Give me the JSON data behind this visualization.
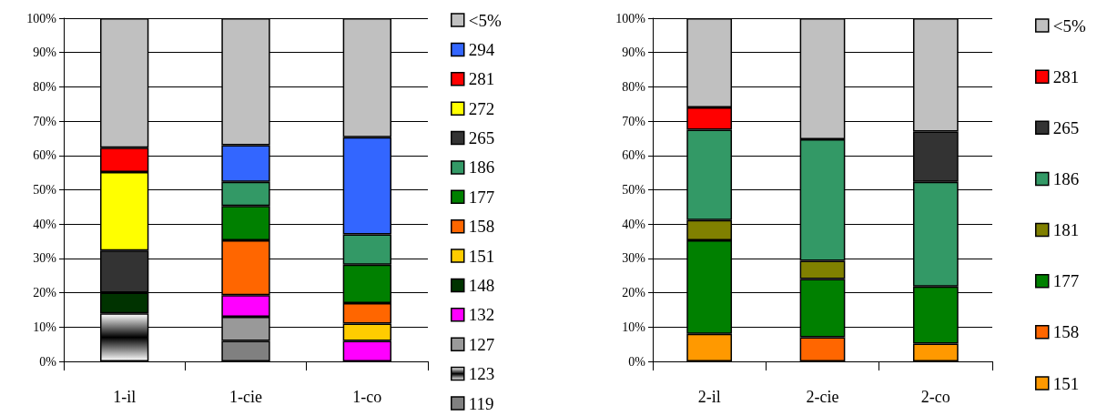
{
  "chart_data": [
    {
      "type": "bar",
      "stacked": true,
      "categories": [
        "1-il",
        "1-cie",
        "1-co"
      ],
      "ylim": [
        0,
        100
      ],
      "yticks": [
        {
          "value": 0,
          "label": "0%"
        },
        {
          "value": 10,
          "label": "10%"
        },
        {
          "value": 20,
          "label": "20%"
        },
        {
          "value": 30,
          "label": "30%"
        },
        {
          "value": 40,
          "label": "40%"
        },
        {
          "value": 50,
          "label": "50%"
        },
        {
          "value": 60,
          "label": "60%"
        },
        {
          "value": 70,
          "label": "70%"
        },
        {
          "value": 80,
          "label": "80%"
        },
        {
          "value": 90,
          "label": "90%"
        },
        {
          "value": 100,
          "label": "100%"
        }
      ],
      "grid": "y",
      "legend": "right",
      "series": [
        {
          "name": "119",
          "color": "#808080",
          "values": [
            null,
            6,
            null
          ]
        },
        {
          "name": "123",
          "color": "#000000",
          "values": [
            14,
            null,
            null
          ]
        },
        {
          "name": "127",
          "color": "#999999",
          "values": [
            null,
            7,
            null
          ]
        },
        {
          "name": "132",
          "color": "#ff00ff",
          "values": [
            null,
            6.3,
            6
          ]
        },
        {
          "name": "148",
          "color": "#003300",
          "values": [
            6,
            null,
            null
          ]
        },
        {
          "name": "151",
          "color": "#ffcc00",
          "values": [
            null,
            null,
            5
          ]
        },
        {
          "name": "158",
          "color": "#ff6600",
          "values": [
            null,
            16,
            6
          ]
        },
        {
          "name": "177",
          "color": "#008000",
          "values": [
            null,
            10,
            11.2
          ]
        },
        {
          "name": "186",
          "color": "#339966",
          "values": [
            null,
            7,
            8.8
          ]
        },
        {
          "name": "265",
          "color": "#333333",
          "values": [
            12.3,
            null,
            null
          ]
        },
        {
          "name": "272",
          "color": "#ffff00",
          "values": [
            22.9,
            null,
            null
          ]
        },
        {
          "name": "281",
          "color": "#ff0000",
          "values": [
            7.1,
            null,
            null
          ]
        },
        {
          "name": "294",
          "color": "#3366ff",
          "values": [
            null,
            10.7,
            28.3
          ]
        },
        {
          "name": "<5%",
          "color": "#c0c0c0",
          "values": [
            37.7,
            37,
            34.7
          ]
        }
      ]
    },
    {
      "type": "bar",
      "stacked": true,
      "categories": [
        "2-il",
        "2-cie",
        "2-co"
      ],
      "ylim": [
        0,
        100
      ],
      "yticks": [
        {
          "value": 0,
          "label": "0%"
        },
        {
          "value": 10,
          "label": "10%"
        },
        {
          "value": 20,
          "label": "20%"
        },
        {
          "value": 30,
          "label": "30%"
        },
        {
          "value": 40,
          "label": "40%"
        },
        {
          "value": 50,
          "label": "50%"
        },
        {
          "value": 60,
          "label": "60%"
        },
        {
          "value": 70,
          "label": "70%"
        },
        {
          "value": 80,
          "label": "80%"
        },
        {
          "value": 90,
          "label": "90%"
        },
        {
          "value": 100,
          "label": "100%"
        }
      ],
      "grid": "y",
      "legend": "right",
      "series": [
        {
          "name": "151",
          "color": "#ff9900",
          "values": [
            8,
            null,
            5.2
          ]
        },
        {
          "name": "158",
          "color": "#ff6600",
          "values": [
            null,
            7,
            null
          ]
        },
        {
          "name": "177",
          "color": "#008000",
          "values": [
            27.3,
            17,
            16.6
          ]
        },
        {
          "name": "181",
          "color": "#808000",
          "values": [
            5.9,
            5.3,
            null
          ]
        },
        {
          "name": "186",
          "color": "#339966",
          "values": [
            26.3,
            35.4,
            30.5
          ]
        },
        {
          "name": "265",
          "color": "#333333",
          "values": [
            null,
            null,
            14.7
          ]
        },
        {
          "name": "281",
          "color": "#ff0000",
          "values": [
            6.5,
            null,
            null
          ]
        },
        {
          "name": "<5%",
          "color": "#c0c0c0",
          "values": [
            26,
            35.3,
            33
          ]
        }
      ]
    }
  ]
}
